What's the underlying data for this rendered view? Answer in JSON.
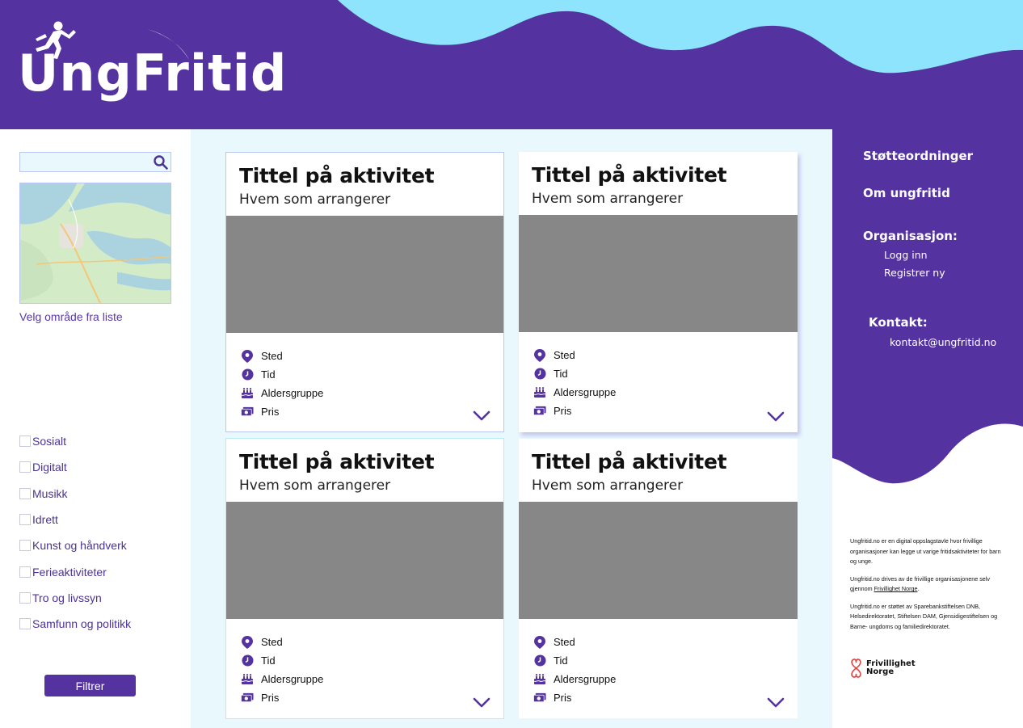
{
  "brand": {
    "name": "UngFritid",
    "colors": {
      "purple": "#5433a0",
      "sky": "#8fe4fd",
      "panel": "#e9f8fd",
      "image_placeholder": "#878787"
    }
  },
  "sidebar": {
    "search": {
      "value": "",
      "placeholder": "",
      "icon": "search-icon"
    },
    "map_link": "Velg område fra liste",
    "categories": [
      {
        "label": "Sosialt",
        "checked": false
      },
      {
        "label": "Digitalt",
        "checked": false
      },
      {
        "label": "Musikk",
        "checked": false
      },
      {
        "label": "Idrett",
        "checked": false
      },
      {
        "label": "Kunst og håndverk",
        "checked": false
      },
      {
        "label": "Ferieaktiviteter",
        "checked": false
      },
      {
        "label": "Tro og livssyn",
        "checked": false
      },
      {
        "label": "Samfunn og politikk",
        "checked": false
      }
    ],
    "filter_label": "Filtrer"
  },
  "cards": [
    {
      "title": "Tittel på aktivitet",
      "organizer": "Hvem som arrangerer",
      "place": "Sted",
      "time": "Tid",
      "age": "Aldersgruppe",
      "price": "Pris"
    },
    {
      "title": "Tittel på aktivitet",
      "organizer": "Hvem som arrangerer",
      "place": "Sted",
      "time": "Tid",
      "age": "Aldersgruppe",
      "price": "Pris"
    },
    {
      "title": "Tittel på aktivitet",
      "organizer": "Hvem som arrangerer",
      "place": "Sted",
      "time": "Tid",
      "age": "Aldersgruppe",
      "price": "Pris"
    },
    {
      "title": "Tittel på aktivitet",
      "organizer": "Hvem som arrangerer",
      "place": "Sted",
      "time": "Tid",
      "age": "Aldersgruppe",
      "price": "Pris"
    }
  ],
  "right_nav": {
    "support": "Støtteordninger",
    "about": "Om ungfritid",
    "org_heading": "Organisasjon:",
    "login": "Logg inn",
    "register": "Registrer ny",
    "contact_heading": "Kontakt:",
    "email": "kontakt@ungfritid.no"
  },
  "about": {
    "p1": "Ungfritid.no er en digital oppslagstavle hvor frivillige organisasjoner kan legge ut varige fritidsaktiviteter for barn og unge.",
    "p2_before": "Ungfritid.no drives av de frivillige organisasjonene selv gjennom ",
    "p2_link": "Frivillighet Norge",
    "p2_after": ".",
    "p3": "Ungfritid.no er støttet av Sparebankstiftelsen DNB, Helsedirektoratet, Stiftelsen DAM, Gjensidigestiftelsen og Barne- ungdoms og familiedirektoratet."
  },
  "partner_logo": {
    "line1": "Frivillighet",
    "line2": "Norge"
  }
}
